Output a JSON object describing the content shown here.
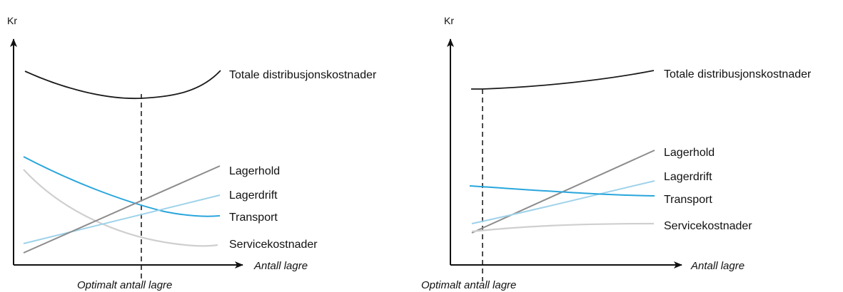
{
  "colors": {
    "axis": "#111111",
    "total": "#1a1a1a",
    "lagerhold": "#8c8c8c",
    "lagerdrift": "#9ed2ea",
    "transport": "#29a6dc",
    "service": "#cfcfcf"
  },
  "panels": [
    {
      "id": "left",
      "y_axis_label": "Kr",
      "x_axis_label": "Antall lagre",
      "optimum_label": "Optimalt antall lagre",
      "curves": [
        {
          "key": "total",
          "label": "Totale distribusjonskostnader"
        },
        {
          "key": "lagerhold",
          "label": "Lagerhold"
        },
        {
          "key": "lagerdrift",
          "label": "Lagerdrift"
        },
        {
          "key": "transport",
          "label": "Transport"
        },
        {
          "key": "service",
          "label": "Servicekostnader"
        }
      ]
    },
    {
      "id": "right",
      "y_axis_label": "Kr",
      "x_axis_label": "Antall lagre",
      "optimum_label": "Optimalt antall lagre",
      "curves": [
        {
          "key": "total",
          "label": "Totale distribusjonskostnader"
        },
        {
          "key": "lagerhold",
          "label": "Lagerhold"
        },
        {
          "key": "lagerdrift",
          "label": "Lagerdrift"
        },
        {
          "key": "transport",
          "label": "Transport"
        },
        {
          "key": "service",
          "label": "Servicekostnader"
        }
      ]
    }
  ]
}
